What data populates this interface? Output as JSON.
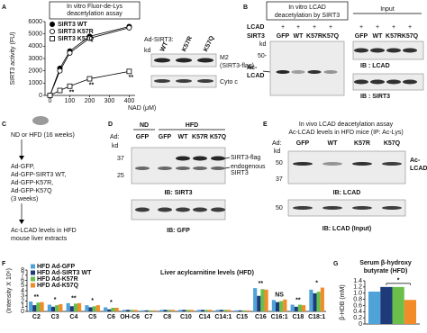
{
  "chart_data": [
    {
      "type": "line",
      "title": [
        "In vitro Fluor-de-Lys",
        "deacetylation assay"
      ],
      "x": [
        0,
        50,
        100,
        200,
        400
      ],
      "xlim": [
        -25,
        430
      ],
      "xticks": [
        0,
        100,
        200,
        300,
        400
      ],
      "xlabel": "NAD (μM)",
      "ylim": [
        0,
        6000
      ],
      "yticks": [
        0,
        1000,
        2000,
        3000,
        4000,
        5000,
        6000
      ],
      "ylabel": "SIRT3 activity (FU)",
      "series": [
        {
          "name": "SIRT3 WT",
          "color": "#000000",
          "marker": "filled-circle",
          "values": [
            0,
            2200,
            3600,
            4800,
            5600
          ]
        },
        {
          "name": "SIRT3 K57R",
          "color": "#000000",
          "marker": "open-circle",
          "values": [
            0,
            2000,
            3450,
            4650,
            5500
          ]
        },
        {
          "name": "SIRT3 K57Q",
          "color": "#000000",
          "marker": "open-square",
          "values": [
            0,
            400,
            750,
            1350,
            1950
          ]
        }
      ],
      "annotations": [
        {
          "text": "**",
          "series": 2,
          "index": 2
        },
        {
          "text": "**",
          "series": 2,
          "index": 3
        },
        {
          "text": "**",
          "series": 2,
          "index": 4
        }
      ]
    },
    {
      "type": "bar",
      "title": "Liver acylcarnitine levels (HFD)",
      "ylabel": "(Intensity X 10⁶)",
      "ylim": [
        0,
        8
      ],
      "yticks": [
        0,
        1,
        2,
        3,
        4,
        5,
        6,
        7,
        8
      ],
      "categories": [
        "C2",
        "C3",
        "C4",
        "C5",
        "C6",
        "OH-C6",
        "C7",
        "C8",
        "C10",
        "C14",
        "C14:1",
        "C15",
        "C16",
        "C16:1",
        "C18",
        "C18:1"
      ],
      "series": [
        {
          "name": "HFD Ad-GFP",
          "color": "#4fa3d8",
          "values": [
            1.9,
            1.3,
            1.6,
            1.2,
            0.8,
            0.3,
            0.2,
            0.3,
            0.3,
            0.3,
            0.3,
            0.2,
            4.5,
            2.2,
            1.3,
            4.2
          ]
        },
        {
          "name": "HFD Ad-SIRT3 WT",
          "color": "#1f3a78",
          "values": [
            1.2,
            0.9,
            1.0,
            0.8,
            0.4,
            0.3,
            0.2,
            0.3,
            0.3,
            0.3,
            0.3,
            0.2,
            3.0,
            1.8,
            0.9,
            3.5
          ]
        },
        {
          "name": "HFD Ad-K57R",
          "color": "#6abf4b",
          "values": [
            1.7,
            1.2,
            1.5,
            1.0,
            0.7,
            0.3,
            0.2,
            0.3,
            0.3,
            0.3,
            0.3,
            0.2,
            4.3,
            2.0,
            1.3,
            3.8
          ]
        },
        {
          "name": "HFD Ad-K57Q",
          "color": "#f28c28",
          "values": [
            1.8,
            1.4,
            1.6,
            1.2,
            0.7,
            0.3,
            0.2,
            0.3,
            0.3,
            0.3,
            0.3,
            0.2,
            4.2,
            2.3,
            1.2,
            4.6
          ]
        }
      ],
      "annotations": [
        {
          "text": "**",
          "category": 0
        },
        {
          "text": "*",
          "category": 1
        },
        {
          "text": "**",
          "category": 2
        },
        {
          "text": "*",
          "category": 3
        },
        {
          "text": "*",
          "category": 4
        },
        {
          "text": "**",
          "category": 12
        },
        {
          "text": "NS",
          "category": 13
        },
        {
          "text": "**",
          "category": 14
        },
        {
          "text": "*",
          "category": 15
        }
      ]
    },
    {
      "type": "bar",
      "title": [
        "Serum β-hydroxy",
        "butyrate (HFD)"
      ],
      "ylabel": "β-HDB (mM)",
      "ylim": [
        0,
        1.4
      ],
      "yticks": [
        0,
        0.2,
        0.4,
        0.6,
        0.8,
        {
          "value": 1,
          "label": "1.0"
        },
        1.2,
        1.4
      ],
      "values": [
        1.05,
        1.2,
        1.2,
        0.78
      ],
      "colors": [
        "#4fa3d8",
        "#1f3a78",
        "#6abf4b",
        "#f28c28"
      ],
      "annotations": [
        {
          "text": "*",
          "from": 1,
          "to": 3
        }
      ]
    }
  ],
  "panels": {
    "A": {
      "letter": "A",
      "blot": {
        "ad": "Ad-SIRT3:",
        "kd": "kd",
        "lanes": [
          "WT",
          "K57R",
          "K57Q"
        ],
        "rows": [
          "M2",
          "(SIRT3-flag)",
          "Cyto c"
        ]
      }
    },
    "B": {
      "letter": "B",
      "title": [
        "In vitro  LCAD",
        "deacetylation by SIRT3"
      ],
      "input": "Input",
      "rows": [
        "LCAD",
        "SIRT3"
      ],
      "plus": [
        "+",
        "+",
        "+",
        "+",
        "+",
        "+",
        "+",
        "+"
      ],
      "lanes": [
        "GFP",
        "WT",
        "K57R",
        "K57Q",
        "GFP",
        "WT",
        "K57R",
        "K57Q"
      ],
      "kd": "kd",
      "marker": "50-",
      "band": [
        "Ac-",
        "LCAD"
      ],
      "ib": [
        "IB : LCAD",
        "IB : SIRT3"
      ]
    },
    "C": {
      "letter": "C",
      "steps": [
        [
          "ND or HFD (16 weeks)"
        ],
        [
          "Ad-GFP,",
          "Ad-GFP-SIRT3 WT,",
          "Ad-GFP-K57R,",
          "Ad-GFP-K57Q",
          "(3 weeks)"
        ],
        [
          "Ac-LCAD levels in HFD",
          "mouse liver extracts"
        ]
      ]
    },
    "D": {
      "letter": "D",
      "ad": "Ad:",
      "groups": [
        "ND",
        "HFD"
      ],
      "lanes": [
        "GFP",
        "GFP",
        "WT",
        "K57R",
        "K57Q"
      ],
      "kd": "kd",
      "markers": [
        "37",
        "25"
      ],
      "bands": [
        "SIRT3-flag",
        "endogenous",
        "SIRT3"
      ],
      "ib": [
        "IB: SIRT3",
        "IB: GFP"
      ]
    },
    "E": {
      "letter": "E",
      "title": [
        "In vivo LCAD deacetylation assay",
        "Ac-LCAD levels in HFD mice (IP: Ac-Lys)"
      ],
      "ad": "Ad:",
      "lanes": [
        "GFP",
        "WT",
        "K57R",
        "K57Q"
      ],
      "kd": "kd",
      "markers": [
        "50",
        "37",
        "50"
      ],
      "band": [
        "Ac-",
        "LCAD"
      ],
      "ib": [
        "IB: LCAD",
        "IB: LCAD (Input)"
      ]
    },
    "F": {
      "letter": "F"
    },
    "G": {
      "letter": "G"
    }
  }
}
